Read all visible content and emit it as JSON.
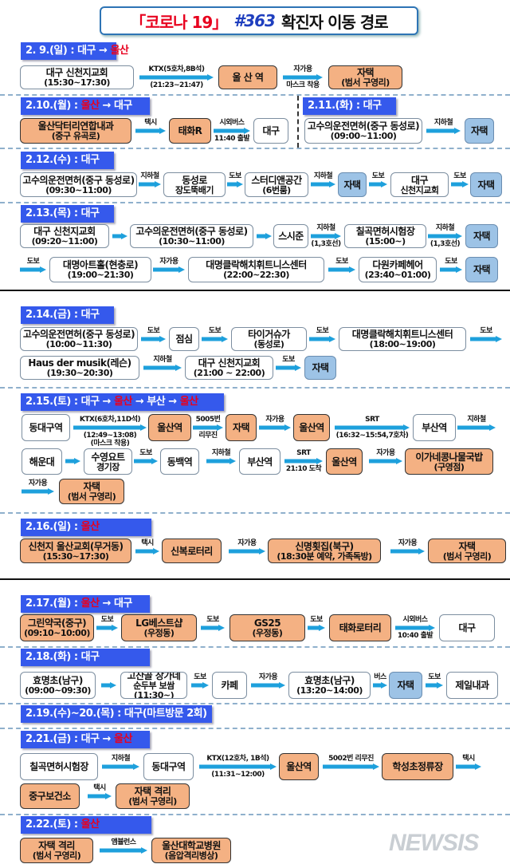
{
  "title": {
    "prefix": "「코로나 19」",
    "number": "#363",
    "suffix": "확진자 이동 경로"
  },
  "watermark": "NEWSIS",
  "colors": {
    "header": "#3559ec",
    "destination_red": "#e8001e",
    "ulsan_box": "#f4b183",
    "home_box": "#9dc3e6",
    "arrow": "#1ea0dc"
  },
  "days": [
    {
      "header": [
        {
          "text": "2. 9.(일) : 대구 → "
        },
        {
          "text": "울산",
          "red": true
        }
      ],
      "nodes": [
        {
          "type": "box",
          "style": "white",
          "lines": [
            "대구 신천지교회",
            "(15:30~17:30)"
          ]
        },
        {
          "type": "arrow",
          "above": "KTX(5호차,8B석)",
          "below": [
            "(21:23~21:47)"
          ]
        },
        {
          "type": "box",
          "style": "orange",
          "lines": [
            "울 산 역"
          ]
        },
        {
          "type": "arrow",
          "above": "자가용",
          "below": [
            "마스크 착용"
          ]
        },
        {
          "type": "box",
          "style": "orange",
          "lines": [
            "자택",
            "(범서 구영리)"
          ]
        }
      ]
    },
    {
      "header": [
        {
          "text": "2.10.(월) : "
        },
        {
          "text": "울산",
          "red": true
        },
        {
          "text": " → 대구"
        }
      ],
      "nodes": [
        {
          "type": "box",
          "style": "orange",
          "lines": [
            "울산닥터리연합내과",
            "(중구 유곡로)"
          ]
        },
        {
          "type": "arrow",
          "above": "택시",
          "below": []
        },
        {
          "type": "box",
          "style": "orange",
          "lines": [
            "태화R"
          ]
        },
        {
          "type": "arrow",
          "above": "시외버스",
          "below": [
            "11:40 출발"
          ]
        },
        {
          "type": "box",
          "style": "white",
          "lines": [
            "대구"
          ]
        }
      ]
    },
    {
      "header": [
        {
          "text": "2.11.(화) : 대구"
        }
      ],
      "nodes": [
        {
          "type": "box",
          "style": "white",
          "lines": [
            "고수의운전면허(중구 동성로)",
            "(09:00~11:00)"
          ]
        },
        {
          "type": "arrow",
          "above": "지하철",
          "below": []
        },
        {
          "type": "box",
          "style": "blue",
          "lines": [
            "자택"
          ]
        }
      ]
    },
    {
      "header": [
        {
          "text": "2.12.(수) : 대구"
        }
      ],
      "nodes": [
        {
          "type": "box",
          "style": "white",
          "lines": [
            "고수의운전면허(중구 동성로)",
            "(09:30~11:00)"
          ]
        },
        {
          "type": "arrow",
          "above": "지하철",
          "below": []
        },
        {
          "type": "box",
          "style": "white",
          "lines": [
            "동성로",
            "장도뚝배기"
          ]
        },
        {
          "type": "arrow",
          "above": "도보",
          "below": []
        },
        {
          "type": "box",
          "style": "white",
          "lines": [
            "스터디앤공간",
            "(6번룸)"
          ]
        },
        {
          "type": "arrow",
          "above": "지하철",
          "below": []
        },
        {
          "type": "box",
          "style": "blue",
          "lines": [
            "자택"
          ]
        },
        {
          "type": "arrow",
          "above": "도보",
          "below": []
        },
        {
          "type": "box",
          "style": "white",
          "lines": [
            "대구",
            "신천지교회"
          ]
        },
        {
          "type": "arrow",
          "above": "도보",
          "below": []
        },
        {
          "type": "box",
          "style": "blue",
          "lines": [
            "자택"
          ]
        }
      ]
    },
    {
      "header": [
        {
          "text": "2.13.(목) : 대구"
        }
      ],
      "nodes": [
        {
          "type": "box",
          "style": "white",
          "lines": [
            "대구 신천지교회",
            "(09:20~11:00)"
          ]
        },
        {
          "type": "arrow",
          "above": "",
          "below": []
        },
        {
          "type": "box",
          "style": "white",
          "lines": [
            "고수의운전면허(중구 동성로)",
            "(10:30~11:00)"
          ]
        },
        {
          "type": "arrow",
          "above": "",
          "below": []
        },
        {
          "type": "box",
          "style": "white",
          "lines": [
            "스시준"
          ]
        },
        {
          "type": "arrow",
          "above": "지하철",
          "below": [
            "(1,3호선)"
          ]
        },
        {
          "type": "box",
          "style": "white",
          "lines": [
            "칠곡면허시험장",
            "(15:00~)"
          ]
        },
        {
          "type": "arrow",
          "above": "지하철",
          "below": [
            "(1,3호선)"
          ]
        },
        {
          "type": "box",
          "style": "blue",
          "lines": [
            "자택"
          ]
        },
        {
          "type": "arrow",
          "above": "도보",
          "below": []
        },
        {
          "type": "box",
          "style": "white",
          "lines": [
            "대명아트홀(현충로)",
            "(19:00~21:30)"
          ]
        },
        {
          "type": "arrow",
          "above": "자가용",
          "below": []
        },
        {
          "type": "box",
          "style": "white",
          "lines": [
            "대명클락해치휘트니스센터",
            "(22:00~22:30)"
          ]
        },
        {
          "type": "arrow",
          "above": "도보",
          "below": []
        },
        {
          "type": "box",
          "style": "white",
          "lines": [
            "다원카페헤어",
            "(23:40~01:00)"
          ]
        },
        {
          "type": "arrow",
          "above": "도보",
          "below": []
        },
        {
          "type": "box",
          "style": "blue",
          "lines": [
            "자택"
          ]
        }
      ]
    },
    {
      "header": [
        {
          "text": "2.14.(금) : 대구"
        }
      ],
      "nodes": [
        {
          "type": "box",
          "style": "white",
          "lines": [
            "고수의운전면허(중구 동성로)",
            "(10:00~11:30)"
          ]
        },
        {
          "type": "arrow",
          "above": "도보",
          "below": []
        },
        {
          "type": "box",
          "style": "white",
          "lines": [
            "점심"
          ]
        },
        {
          "type": "arrow",
          "above": "도보",
          "below": []
        },
        {
          "type": "box",
          "style": "white",
          "lines": [
            "타이거슈가",
            "(동성로)"
          ]
        },
        {
          "type": "arrow",
          "above": "도보",
          "below": []
        },
        {
          "type": "box",
          "style": "white",
          "lines": [
            "대명클락해치휘트니스센터",
            "(18:00~19:00)"
          ]
        },
        {
          "type": "arrow",
          "above": "도보",
          "below": []
        },
        {
          "type": "box",
          "style": "white",
          "lines": [
            "Haus der musik(레슨)",
            "(19:30~20:30)"
          ]
        },
        {
          "type": "arrow",
          "above": "지하철",
          "below": []
        },
        {
          "type": "box",
          "style": "white",
          "lines": [
            "대구 신천지교회",
            "(21:00 ~ 22:00)"
          ]
        },
        {
          "type": "arrow",
          "above": "도보",
          "below": []
        },
        {
          "type": "box",
          "style": "blue",
          "lines": [
            "자택"
          ]
        }
      ]
    },
    {
      "header": [
        {
          "text": "2.15.(토) : 대구 → "
        },
        {
          "text": "울산",
          "red": true
        },
        {
          "text": " → 부산 → "
        },
        {
          "text": "울산",
          "red": true
        }
      ],
      "nodes": [
        {
          "type": "box",
          "style": "white",
          "lines": [
            "동대구역"
          ]
        },
        {
          "type": "arrow",
          "above": "KTX(6호차,11D석)",
          "below": [
            "(12:49~13:08)",
            "(마스크 착용)"
          ]
        },
        {
          "type": "box",
          "style": "orange",
          "lines": [
            "울산역"
          ]
        },
        {
          "type": "arrow",
          "above": "5005번",
          "below": [
            "리무진"
          ]
        },
        {
          "type": "box",
          "style": "orange",
          "lines": [
            "자택"
          ]
        },
        {
          "type": "arrow",
          "above": "자가용",
          "below": []
        },
        {
          "type": "box",
          "style": "orange",
          "lines": [
            "울산역"
          ]
        },
        {
          "type": "arrow",
          "above": "SRT",
          "below": [
            "(16:32~15:54,7호차)"
          ]
        },
        {
          "type": "box",
          "style": "white",
          "lines": [
            "부산역"
          ]
        },
        {
          "type": "arrow",
          "above": "지하철",
          "below": []
        },
        {
          "type": "box",
          "style": "white",
          "lines": [
            "해운대"
          ]
        },
        {
          "type": "arrow",
          "above": "",
          "below": []
        },
        {
          "type": "box",
          "style": "white",
          "lines": [
            "수영요트",
            "경기장"
          ]
        },
        {
          "type": "arrow",
          "above": "도보",
          "below": []
        },
        {
          "type": "box",
          "style": "white",
          "lines": [
            "동백역"
          ]
        },
        {
          "type": "arrow",
          "above": "지하철",
          "below": []
        },
        {
          "type": "box",
          "style": "white",
          "lines": [
            "부산역"
          ]
        },
        {
          "type": "arrow",
          "above": "SRT",
          "below": [
            "21:10 도착"
          ]
        },
        {
          "type": "box",
          "style": "orange",
          "lines": [
            "울산역"
          ]
        },
        {
          "type": "arrow",
          "above": "자가용",
          "below": []
        },
        {
          "type": "box",
          "style": "orange",
          "lines": [
            "이가네콩나물국밥",
            "(구영점)"
          ]
        },
        {
          "type": "arrow",
          "above": "자가용",
          "below": []
        },
        {
          "type": "box",
          "style": "orange",
          "lines": [
            "자택",
            "(범서 구영리)"
          ]
        }
      ]
    },
    {
      "header": [
        {
          "text": "2.16.(일) : "
        },
        {
          "text": "울산",
          "red": true
        }
      ],
      "nodes": [
        {
          "type": "box",
          "style": "orange",
          "lines": [
            "신천지 울산교회(무거동)",
            "(15:30~17:30)"
          ]
        },
        {
          "type": "arrow",
          "above": "택시",
          "below": []
        },
        {
          "type": "box",
          "style": "orange",
          "lines": [
            "신복로터리"
          ]
        },
        {
          "type": "arrow",
          "above": "자가용",
          "below": []
        },
        {
          "type": "box",
          "style": "orange",
          "lines": [
            "신명횟집(북구)",
            "(18:30분 예약, 가족독방)"
          ]
        },
        {
          "type": "arrow",
          "above": "자가용",
          "below": []
        },
        {
          "type": "box",
          "style": "orange",
          "lines": [
            "자택",
            "(범서 구영리)"
          ]
        }
      ]
    },
    {
      "header": [
        {
          "text": "2.17.(월) : "
        },
        {
          "text": "울산",
          "red": true
        },
        {
          "text": " → 대구"
        }
      ],
      "nodes": [
        {
          "type": "box",
          "style": "orange",
          "lines": [
            "그린약국(중구)",
            "(09:10~10:00)"
          ]
        },
        {
          "type": "arrow",
          "above": "도보",
          "below": []
        },
        {
          "type": "box",
          "style": "orange",
          "lines": [
            "LG베스트샵",
            "(우정동)"
          ]
        },
        {
          "type": "arrow",
          "above": "도보",
          "below": []
        },
        {
          "type": "box",
          "style": "orange",
          "lines": [
            "GS25",
            "(우정동)"
          ]
        },
        {
          "type": "arrow",
          "above": "도보",
          "below": []
        },
        {
          "type": "box",
          "style": "orange",
          "lines": [
            "태화로터리"
          ]
        },
        {
          "type": "arrow",
          "above": "시외버스",
          "below": [
            "10:40 출발"
          ]
        },
        {
          "type": "box",
          "style": "white",
          "lines": [
            "대구"
          ]
        }
      ]
    },
    {
      "header": [
        {
          "text": "2.18.(화) : 대구"
        }
      ],
      "nodes": [
        {
          "type": "box",
          "style": "white",
          "lines": [
            "효명초(남구)",
            "(09:00~09:30)"
          ]
        },
        {
          "type": "arrow",
          "above": "",
          "below": []
        },
        {
          "type": "box",
          "style": "white",
          "lines": [
            "고산골 장가네",
            "순두부 보쌈",
            "(11:30~)"
          ]
        },
        {
          "type": "arrow",
          "above": "도보",
          "below": []
        },
        {
          "type": "box",
          "style": "white",
          "lines": [
            "카페"
          ]
        },
        {
          "type": "arrow",
          "above": "자가용",
          "below": []
        },
        {
          "type": "box",
          "style": "white",
          "lines": [
            "효명초(남구)",
            "(13:20~14:00)"
          ]
        },
        {
          "type": "arrow",
          "above": "버스",
          "below": []
        },
        {
          "type": "box",
          "style": "blue",
          "lines": [
            "자택"
          ]
        },
        {
          "type": "arrow",
          "above": "도보",
          "below": []
        },
        {
          "type": "box",
          "style": "white",
          "lines": [
            "제일내과"
          ]
        }
      ]
    },
    {
      "header": [
        {
          "text": "2.19.(수)~20.(목) : 대구(마트방문 2회)"
        }
      ],
      "nodes": []
    },
    {
      "header": [
        {
          "text": "2.21.(금) : 대구 → "
        },
        {
          "text": "울산",
          "red": true
        }
      ],
      "nodes": [
        {
          "type": "box",
          "style": "white",
          "lines": [
            "칠곡면허시험장"
          ]
        },
        {
          "type": "arrow",
          "above": "지하철",
          "below": []
        },
        {
          "type": "box",
          "style": "white",
          "lines": [
            "동대구역"
          ]
        },
        {
          "type": "arrow",
          "above": "KTX(12호차, 1B석)",
          "below": [
            "(11:31~12:00)"
          ]
        },
        {
          "type": "box",
          "style": "orange",
          "lines": [
            "울산역"
          ]
        },
        {
          "type": "arrow",
          "above": "5002번 리무진",
          "below": []
        },
        {
          "type": "box",
          "style": "orange",
          "lines": [
            "학성초정류장"
          ]
        },
        {
          "type": "arrow",
          "above": "택시",
          "below": []
        },
        {
          "type": "box",
          "style": "orange",
          "lines": [
            "중구보건소"
          ]
        },
        {
          "type": "arrow",
          "above": "택시",
          "below": []
        },
        {
          "type": "box",
          "style": "orange",
          "lines": [
            "자택 격리",
            "(범서 구영리)"
          ]
        }
      ]
    },
    {
      "header": [
        {
          "text": "2.22.(토) : "
        },
        {
          "text": "울산",
          "red": true
        }
      ],
      "nodes": [
        {
          "type": "box",
          "style": "orange",
          "lines": [
            "자택 격리",
            "(범서 구영리)"
          ]
        },
        {
          "type": "arrow",
          "above": "앰뷸런스",
          "below": []
        },
        {
          "type": "box",
          "style": "orange",
          "lines": [
            "울산대학교병원",
            "(음압격리병상)"
          ]
        }
      ]
    }
  ]
}
